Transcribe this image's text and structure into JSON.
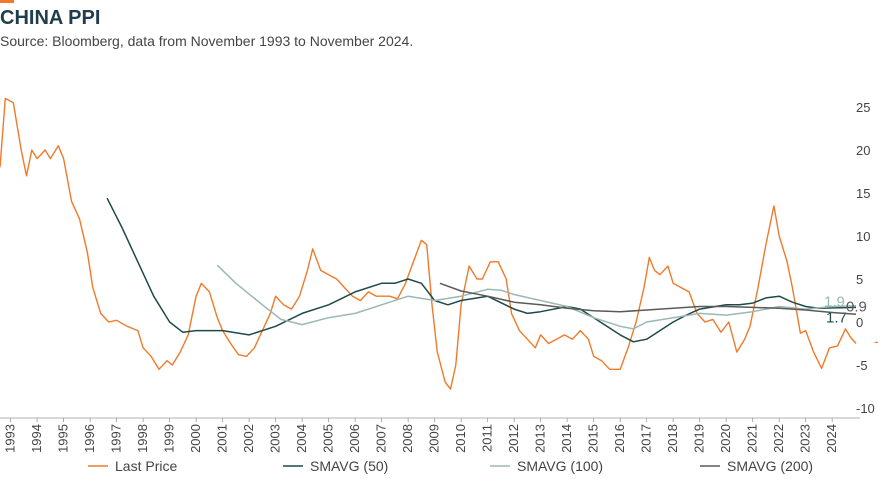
{
  "chart_data": {
    "type": "line",
    "title": "CHINA PPI",
    "subtitle": "Source: Bloomberg, data from November 1993 to November 2024.",
    "xlim": [
      1992.6,
      2025.05
    ],
    "xticks": [
      1993,
      1994,
      1995,
      1996,
      1997,
      1998,
      1999,
      2000,
      2001,
      2002,
      2003,
      2004,
      2005,
      2006,
      2007,
      2008,
      2009,
      2010,
      2011,
      2012,
      2013,
      2014,
      2015,
      2016,
      2017,
      2018,
      2019,
      2020,
      2021,
      2022,
      2023,
      2024
    ],
    "ylim": [
      -10,
      25
    ],
    "yticks": [
      25,
      20,
      15,
      10,
      5,
      0,
      -5,
      -10
    ],
    "series": [
      {
        "name": "Last Price",
        "color": "#f07a2a",
        "x": [
          1992.6,
          1992.8,
          1993.1,
          1993.4,
          1993.6,
          1993.8,
          1994.0,
          1994.3,
          1994.5,
          1994.8,
          1995.0,
          1995.3,
          1995.6,
          1995.9,
          1996.1,
          1996.4,
          1996.7,
          1997.0,
          1997.4,
          1997.8,
          1998.0,
          1998.3,
          1998.6,
          1998.9,
          1999.1,
          1999.4,
          1999.7,
          2000.0,
          2000.2,
          2000.5,
          2000.8,
          2001.0,
          2001.3,
          2001.6,
          2001.9,
          2002.2,
          2002.5,
          2002.8,
          2003.0,
          2003.3,
          2003.6,
          2003.9,
          2004.2,
          2004.4,
          2004.7,
          2005.0,
          2005.3,
          2005.6,
          2005.9,
          2006.2,
          2006.5,
          2006.8,
          2007.0,
          2007.3,
          2007.6,
          2007.9,
          2008.2,
          2008.5,
          2008.7,
          2008.9,
          2009.1,
          2009.4,
          2009.6,
          2009.8,
          2010.0,
          2010.3,
          2010.6,
          2010.8,
          2011.1,
          2011.4,
          2011.7,
          2011.9,
          2012.2,
          2012.5,
          2012.8,
          2013.0,
          2013.3,
          2013.6,
          2013.9,
          2014.2,
          2014.5,
          2014.8,
          2015.0,
          2015.3,
          2015.6,
          2016.0,
          2016.3,
          2016.6,
          2016.9,
          2017.1,
          2017.3,
          2017.5,
          2017.8,
          2018.0,
          2018.3,
          2018.6,
          2018.9,
          2019.2,
          2019.5,
          2019.8,
          2020.1,
          2020.4,
          2020.7,
          2020.9,
          2021.2,
          2021.5,
          2021.8,
          2022.0,
          2022.3,
          2022.5,
          2022.8,
          2023.0,
          2023.3,
          2023.6,
          2023.9,
          2024.2,
          2024.5,
          2024.7,
          2024.9
        ],
        "values": [
          18,
          26,
          25.5,
          20,
          17,
          20,
          19,
          20,
          19,
          20.5,
          19,
          14,
          12,
          8,
          4,
          1,
          0,
          0.2,
          -0.5,
          -1,
          -3,
          -4,
          -5.5,
          -4.5,
          -5,
          -3.5,
          -1.5,
          3,
          4.5,
          3.5,
          0.5,
          -1,
          -2.5,
          -3.8,
          -4,
          -3,
          -1,
          1,
          3,
          2,
          1.5,
          3,
          6,
          8.5,
          6,
          5.5,
          5,
          4,
          3,
          2.5,
          3.5,
          3,
          3,
          3,
          2.7,
          4.5,
          7,
          9.5,
          9,
          2,
          -3.5,
          -7,
          -7.8,
          -5,
          2,
          6.5,
          5,
          5,
          7,
          7,
          5,
          1,
          -1,
          -2,
          -3,
          -1.5,
          -2.5,
          -2,
          -1.5,
          -2,
          -1,
          -2,
          -4,
          -4.5,
          -5.5,
          -5.5,
          -3,
          0,
          4,
          7.5,
          6,
          5.5,
          6.5,
          4.5,
          4,
          3.5,
          1,
          0,
          0.3,
          -1.2,
          0,
          -3.5,
          -2,
          -0.5,
          4,
          9,
          13.5,
          10,
          7,
          4,
          -1.3,
          -1,
          -3.5,
          -5.4,
          -3,
          -2.8,
          -0.8,
          -1.8,
          -2.5
        ]
      },
      {
        "name": "SMAVG (50)",
        "color": "#1f4a4a",
        "x": [
          1996.64,
          1997.2,
          1997.8,
          1998.4,
          1999.0,
          1999.5,
          2000,
          2001,
          2002,
          2003,
          2004,
          2005,
          2006,
          2007,
          2007.5,
          2008,
          2008.5,
          2009,
          2009.5,
          2010,
          2011,
          2012,
          2012.5,
          2013,
          2014,
          2014.5,
          2015,
          2016,
          2016.5,
          2017,
          2017.5,
          2018,
          2018.5,
          2019,
          2020,
          2020.5,
          2021,
          2021.5,
          2022,
          2022.5,
          2023,
          2023.5,
          2024.9
        ],
        "values": [
          14.4,
          11,
          7,
          3,
          0,
          -1.2,
          -1,
          -1,
          -1.5,
          -0.5,
          1,
          2,
          3.5,
          4.5,
          4.5,
          5,
          4.5,
          2.5,
          2,
          2.5,
          3,
          1.5,
          1,
          1.2,
          1.8,
          1.5,
          0.5,
          -1.5,
          -2.3,
          -2,
          -1,
          0,
          0.8,
          1.5,
          2,
          2,
          2.2,
          2.8,
          3,
          2.3,
          1.8,
          1.6,
          1.7
        ]
      },
      {
        "name": "SMAVG (100)",
        "color": "#9ab8b4",
        "x": [
          2000.8,
          2001.5,
          2002.5,
          2003.2,
          2004,
          2005,
          2006,
          2007,
          2008,
          2009,
          2010,
          2011,
          2011.5,
          2012,
          2013,
          2014,
          2015,
          2016,
          2016.5,
          2017,
          2018,
          2019,
          2020,
          2021,
          2021.5,
          2022,
          2023,
          2024,
          2024.9
        ],
        "values": [
          6.6,
          4.5,
          2,
          0.3,
          -0.3,
          0.5,
          1,
          2,
          3,
          2.5,
          3,
          3.8,
          3.7,
          3.2,
          2.5,
          1.8,
          0.5,
          -0.5,
          -0.8,
          0,
          0.5,
          1,
          0.8,
          1.2,
          1.5,
          1.8,
          1.5,
          1.8,
          1.9
        ]
      },
      {
        "name": "SMAVG (200)",
        "color": "#5a5a5a",
        "x": [
          2009.2,
          2010,
          2011,
          2012,
          2013,
          2014,
          2015,
          2016,
          2017,
          2018,
          2019,
          2020,
          2021,
          2022,
          2023,
          2024,
          2024.9
        ],
        "values": [
          4.5,
          3.6,
          3,
          2.3,
          2,
          1.6,
          1.3,
          1.2,
          1.4,
          1.6,
          1.8,
          1.8,
          1.7,
          1.6,
          1.4,
          1.1,
          0.9
        ]
      }
    ]
  }
}
